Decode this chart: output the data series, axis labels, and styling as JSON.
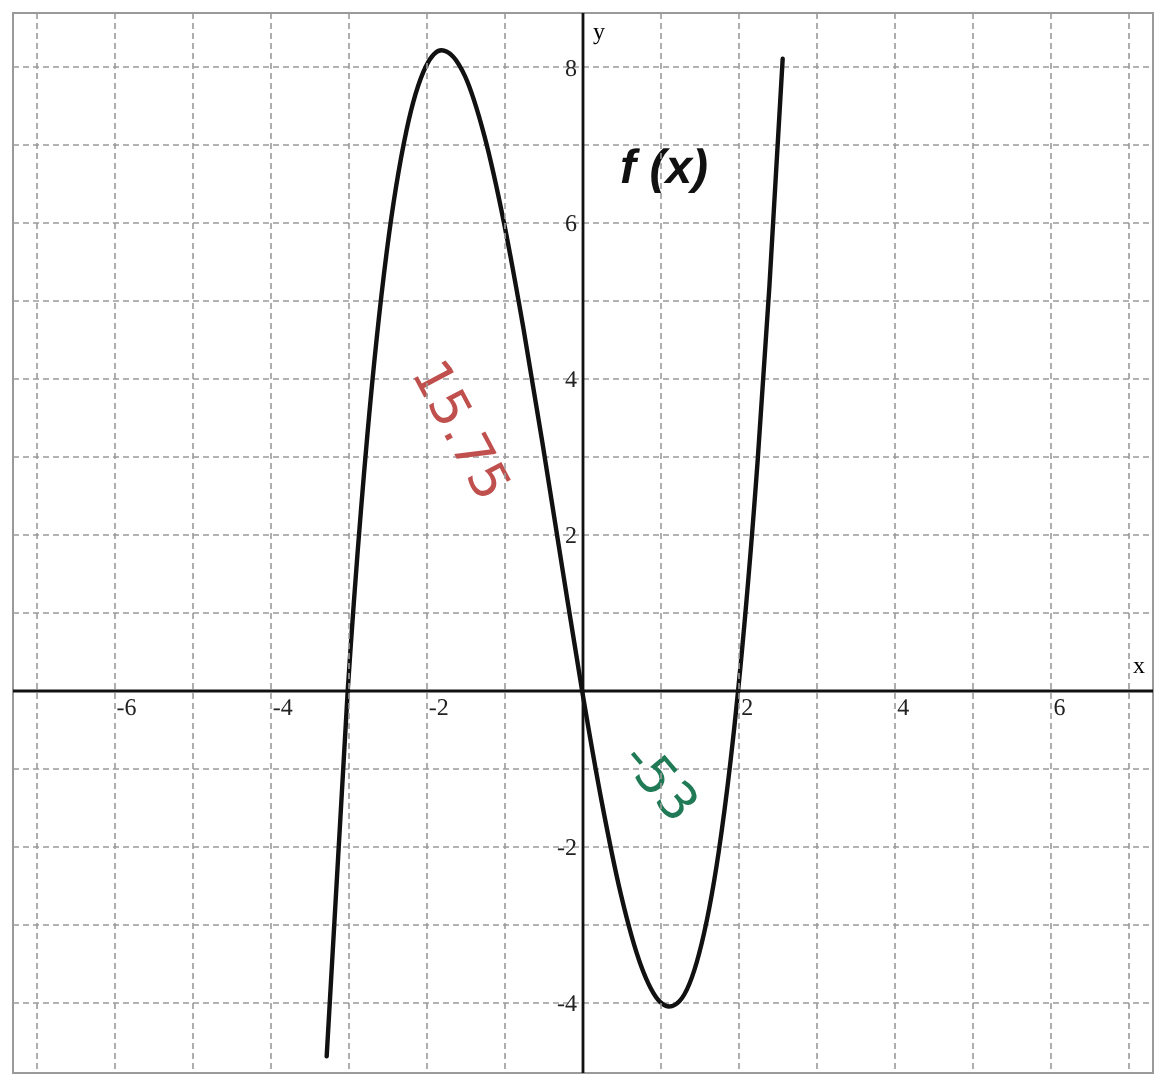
{
  "chart_data": {
    "type": "line",
    "xlabel": "x",
    "ylabel": "y",
    "x": [
      -3.27,
      -3.0,
      -2.75,
      -2.5,
      -2.25,
      -2.0,
      -1.8,
      -1.5,
      -1.25,
      -1.0,
      -0.75,
      -0.5,
      -0.25,
      0,
      0.25,
      0.5,
      0.75,
      1.0,
      1.12,
      1.25,
      1.5,
      1.75,
      2.0,
      2.25,
      2.4,
      2.57
    ],
    "series": [
      {
        "color": "#111111",
        "values": [
          -4.7,
          0,
          3.26,
          5.63,
          7.17,
          8.0,
          8.21,
          7.88,
          7.11,
          6.0,
          4.64,
          3.13,
          1.55,
          0,
          -1.42,
          -2.63,
          -3.52,
          -4.0,
          -4.06,
          -3.99,
          -3.38,
          -2.08,
          0,
          2.95,
          5.18,
          8.1
        ]
      }
    ],
    "xlim": [
      -7.3,
      7.3
    ],
    "ylim": [
      -4.9,
      8.7
    ],
    "xticks": [
      {
        "value": -7,
        "label": null
      },
      -6,
      {
        "value": -5,
        "label": null
      },
      -4,
      {
        "value": -3,
        "label": null
      },
      -2,
      {
        "value": -1,
        "label": null
      },
      {
        "value": 0,
        "label": null
      },
      {
        "value": 1,
        "label": null
      },
      2,
      {
        "value": 3,
        "label": null
      },
      4,
      {
        "value": 5,
        "label": null
      },
      6,
      {
        "value": 7,
        "label": null
      }
    ],
    "yticks": [
      {
        "value": -4,
        "label": "-4"
      },
      {
        "value": -3,
        "label": null
      },
      {
        "value": -2,
        "label": "-2"
      },
      {
        "value": -1,
        "label": null
      },
      {
        "value": 0,
        "label": null
      },
      {
        "value": 1,
        "label": null
      },
      2,
      {
        "value": 3,
        "label": null
      },
      4,
      {
        "value": 5,
        "label": null
      },
      6,
      {
        "value": 7,
        "label": null
      },
      8
    ],
    "grid": true,
    "marker": "none",
    "line_style": "solid",
    "annotations": [
      "f (x)",
      "15.75",
      "-53"
    ]
  }
}
